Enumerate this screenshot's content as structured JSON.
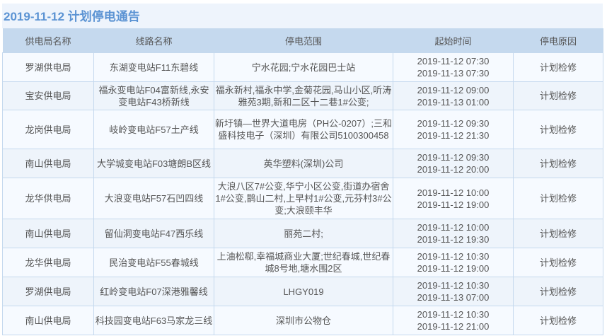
{
  "title": "2019-11-12  计划停电通告",
  "columns": [
    "供电局名称",
    "线路名称",
    "停电范围",
    "起始时间",
    "停电原因"
  ],
  "rows": [
    {
      "bureau": "罗湖供电局",
      "line": "东湖变电站F11东碧线",
      "area": "宁水花园;宁水花园巴士站",
      "start": "2019-11-12 07:30",
      "end": "2019-11-13 07:30",
      "reason": "计划检修"
    },
    {
      "bureau": "宝安供电局",
      "line": "福永变电站F04富新线,永安变电站F43桥新线",
      "area": "福永新村,福永中学,金菊花园,马山小区,听涛雅苑3期,新和二区十二巷1#公变;",
      "start": "2019-11-12 09:00",
      "end": "2019-11-13 01:00",
      "reason": "计划检修"
    },
    {
      "bureau": "龙岗供电局",
      "line": "岐岭变电站F57土产线",
      "area": "新圩镇—世界大道电房（PH公-0207）;三和盛科技电子（深圳）有限公司5100300458",
      "start": "2019-11-12 09:30",
      "end": "2019-11-12 21:30",
      "reason": "计划检修"
    },
    {
      "bureau": "南山供电局",
      "line": "大学城变电站F03塘朗B区线",
      "area": "英华塑料(深圳)公司",
      "start": "2019-11-12 09:30",
      "end": "2019-11-12 20:00",
      "reason": "计划检修"
    },
    {
      "bureau": "龙华供电局",
      "line": "大浪变电站F57石凹四线",
      "area": "大浪八区7#公变,华宁小区公变,街道办宿舍1#公变,鹊山二村,上早村1#公变,元芬村3#公变;大浪颐丰华",
      "start": "2019-11-12 10:00",
      "end": "2019-11-12 19:00",
      "reason": "计划检修"
    },
    {
      "bureau": "南山供电局",
      "line": "留仙洞变电站F47西乐线",
      "area": "丽苑二村;",
      "start": "2019-11-12 10:00",
      "end": "2019-11-12 19:30",
      "reason": "计划检修"
    },
    {
      "bureau": "龙华供电局",
      "line": "民治变电站F55春城线",
      "area": "上油松郗,幸福城商业大厦;世纪春城,世纪春城8号地,塘水围2区",
      "start": "2019-11-12 10:30",
      "end": "2019-11-12 19:00",
      "reason": "计划检修"
    },
    {
      "bureau": "罗湖供电局",
      "line": "红岭变电站F07深港雅馨线",
      "area": "LHGY019",
      "start": "2019-11-12 10:30",
      "end": "2019-11-13 07:00",
      "reason": "计划检修"
    },
    {
      "bureau": "南山供电局",
      "line": "科技园变电站F63马家龙三线",
      "area": "深圳市公物仓",
      "start": "2019-11-12 10:30",
      "end": "2019-11-12 21:00",
      "reason": "计划检修"
    }
  ]
}
